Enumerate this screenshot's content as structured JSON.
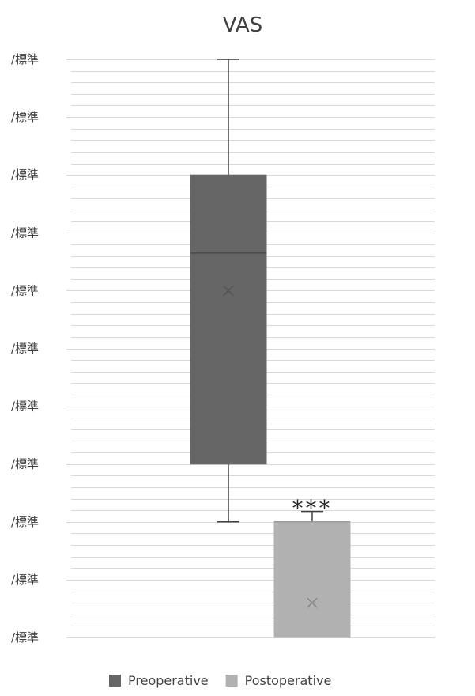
{
  "chart_data": {
    "type": "box",
    "title": "VAS",
    "ylim": [
      0,
      10
    ],
    "y_tick_values": [
      0,
      1,
      2,
      3,
      4,
      5,
      6,
      7,
      8,
      9,
      10
    ],
    "y_tick_labels": [
      "/標準",
      "/標準",
      "/標準",
      "/標準",
      "/標準",
      "/標準",
      "/標準",
      "/標準",
      "/標準",
      "/標準",
      "/標準"
    ],
    "minor_gridlines_per_major": 5,
    "series": [
      {
        "name": "Preoperative",
        "color": "#666666",
        "min": 2,
        "q1": 3,
        "median": 6.65,
        "mean": 6,
        "q3": 8,
        "max": 10
      },
      {
        "name": "Postoperative",
        "color": "#b1b1b1",
        "min": 0,
        "q1": 0,
        "median": 2,
        "mean": 0.6,
        "q3": 2,
        "max": 2.18
      }
    ],
    "annotations": [
      {
        "text": "***",
        "series": "Postoperative",
        "y": 2.35
      }
    ],
    "legend": {
      "position": "bottom"
    },
    "grid": true
  }
}
